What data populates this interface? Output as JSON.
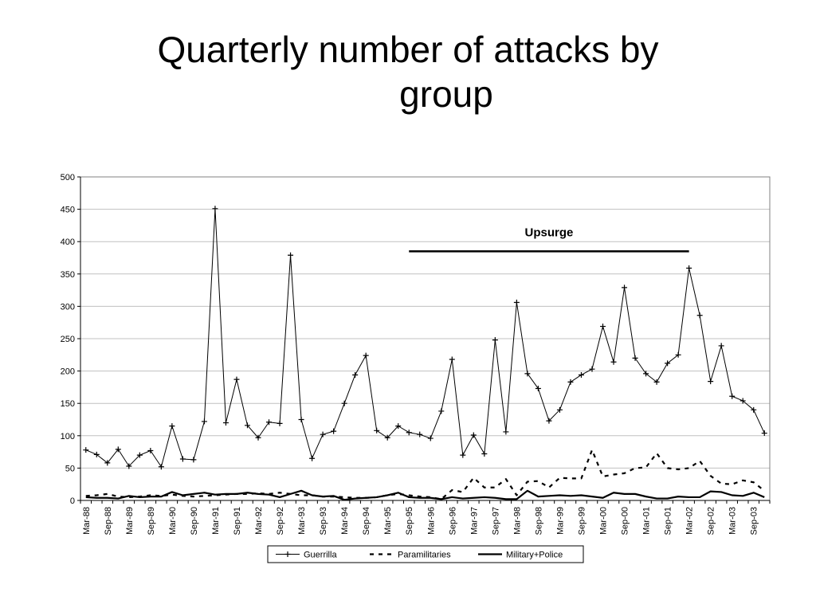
{
  "slide": {
    "title_line1": "Quarterly number of attacks by",
    "title_line2": "group"
  },
  "colors": {
    "background": "#ffffff",
    "gridline": "#c0c0c0",
    "series": "#000000"
  },
  "chart_data": {
    "type": "line",
    "title": "",
    "xlabel": "",
    "ylabel": "",
    "ylim": [
      0,
      500
    ],
    "yticks": [
      0,
      50,
      100,
      150,
      200,
      250,
      300,
      350,
      400,
      450,
      500
    ],
    "grid": true,
    "legend_position": "bottom",
    "x_tick_labels": [
      "Mar-88",
      "Sep-88",
      "Mar-89",
      "Sep-89",
      "Mar-90",
      "Sep-90",
      "Mar-91",
      "Sep-91",
      "Mar-92",
      "Sep-92",
      "Mar-93",
      "Sep-93",
      "Mar-94",
      "Sep-94",
      "Mar-95",
      "Sep-95",
      "Mar-96",
      "Sep-96",
      "Mar-97",
      "Sep-97",
      "Mar-98",
      "Sep-98",
      "Mar-99",
      "Sep-99",
      "Mar-00",
      "Sep-00",
      "Mar-01",
      "Sep-01",
      "Mar-02",
      "Sep-02",
      "Mar-03",
      "Sep-03"
    ],
    "x": [
      "Mar-88",
      "Jun-88",
      "Sep-88",
      "Dec-88",
      "Mar-89",
      "Jun-89",
      "Sep-89",
      "Dec-89",
      "Mar-90",
      "Jun-90",
      "Sep-90",
      "Dec-90",
      "Mar-91",
      "Jun-91",
      "Sep-91",
      "Dec-91",
      "Mar-92",
      "Jun-92",
      "Sep-92",
      "Dec-92",
      "Mar-93",
      "Jun-93",
      "Sep-93",
      "Dec-93",
      "Mar-94",
      "Jun-94",
      "Sep-94",
      "Dec-94",
      "Mar-95",
      "Jun-95",
      "Sep-95",
      "Dec-95",
      "Mar-96",
      "Jun-96",
      "Sep-96",
      "Dec-96",
      "Mar-97",
      "Jun-97",
      "Sep-97",
      "Dec-97",
      "Mar-98",
      "Jun-98",
      "Sep-98",
      "Dec-98",
      "Mar-99",
      "Jun-99",
      "Sep-99",
      "Dec-99",
      "Mar-00",
      "Jun-00",
      "Sep-00",
      "Dec-00",
      "Mar-01",
      "Jun-01",
      "Sep-01",
      "Dec-01",
      "Mar-02",
      "Jun-02",
      "Sep-02",
      "Dec-02",
      "Mar-03",
      "Jun-03",
      "Sep-03",
      "Dec-03"
    ],
    "series": [
      {
        "name": "Guerrilla",
        "style": "solid-with-plus-markers",
        "values": [
          78,
          71,
          58,
          79,
          53,
          70,
          77,
          52,
          115,
          64,
          63,
          122,
          451,
          120,
          187,
          116,
          97,
          121,
          119,
          379,
          125,
          65,
          102,
          107,
          150,
          194,
          224,
          108,
          97,
          115,
          105,
          102,
          96,
          138,
          218,
          70,
          101,
          72,
          248,
          106,
          306,
          196,
          173,
          123,
          140,
          183,
          194,
          203,
          269,
          214,
          329,
          220,
          196,
          183,
          212,
          225,
          359,
          286,
          184,
          239,
          161,
          154,
          140,
          104
        ]
      },
      {
        "name": "Paramilitaries",
        "style": "dashed",
        "values": [
          7,
          8,
          10,
          6,
          5,
          6,
          8,
          7,
          9,
          7,
          6,
          7,
          8,
          9,
          10,
          10,
          11,
          10,
          12,
          10,
          8,
          8,
          6,
          6,
          5,
          4,
          4,
          5,
          8,
          10,
          8,
          6,
          5,
          2,
          16,
          13,
          35,
          20,
          20,
          33,
          8,
          29,
          30,
          20,
          35,
          34,
          34,
          78,
          37,
          40,
          42,
          50,
          51,
          73,
          50,
          48,
          50,
          61,
          38,
          26,
          25,
          31,
          28,
          15
        ]
      },
      {
        "name": "Military+Police",
        "style": "solid-thick",
        "values": [
          5,
          4,
          4,
          3,
          7,
          5,
          6,
          6,
          13,
          8,
          10,
          12,
          9,
          10,
          10,
          12,
          10,
          9,
          5,
          10,
          15,
          8,
          6,
          7,
          1,
          3,
          4,
          5,
          8,
          12,
          5,
          4,
          4,
          2,
          5,
          3,
          4,
          5,
          4,
          2,
          2,
          15,
          6,
          7,
          8,
          7,
          8,
          6,
          4,
          12,
          10,
          10,
          6,
          3,
          3,
          6,
          5,
          5,
          14,
          13,
          8,
          7,
          12,
          5
        ]
      }
    ],
    "annotations": [
      {
        "text": "Upsurge",
        "from_x": "Sep-95",
        "to_x": "Mar-02",
        "y": 385
      }
    ]
  }
}
